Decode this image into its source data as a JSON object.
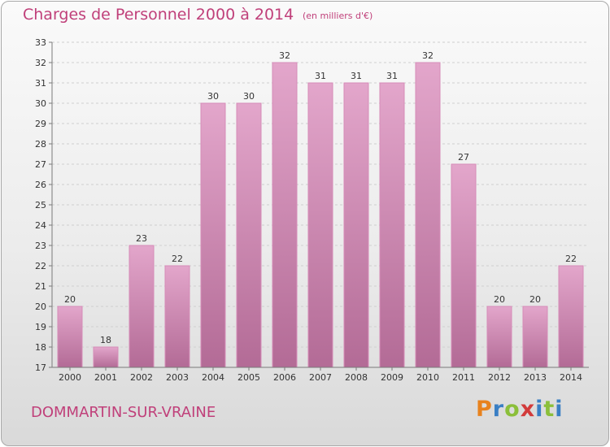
{
  "header": {
    "title": "Charges de Personnel 2000 à 2014",
    "subtitle": "(en milliers d'€)"
  },
  "footer": {
    "commune": "DOMMARTIN-SUR-VRAINE",
    "logo_letters": [
      "P",
      "r",
      "o",
      "x",
      "i",
      "t",
      "i"
    ],
    "logo_colors": [
      "#e8821e",
      "#3a7fc4",
      "#8bbf3a",
      "#d23b3b",
      "#3a7fc4",
      "#8bbf3a",
      "#3a7fc4"
    ]
  },
  "chart_data": {
    "type": "bar",
    "title": "Charges de Personnel 2000 à 2014",
    "subtitle": "(en milliers d'€)",
    "categories": [
      "2000",
      "2001",
      "2002",
      "2003",
      "2004",
      "2005",
      "2006",
      "2007",
      "2008",
      "2009",
      "2010",
      "2011",
      "2012",
      "2013",
      "2014"
    ],
    "values": [
      20,
      18,
      23,
      22,
      30,
      30,
      32,
      31,
      31,
      31,
      32,
      27,
      20,
      20,
      22
    ],
    "ylim": [
      17,
      33
    ],
    "yticks": [
      17,
      18,
      19,
      20,
      21,
      22,
      23,
      24,
      25,
      26,
      27,
      28,
      29,
      30,
      31,
      32,
      33
    ],
    "grid": true,
    "data_labels": true,
    "bar_color_top": "#e3a6cb",
    "bar_color_bottom": "#b36b96",
    "bar_edge_color": "#d68cb8",
    "grid_color": "#cfcfcf",
    "axis_color": "#7a7a7a"
  }
}
